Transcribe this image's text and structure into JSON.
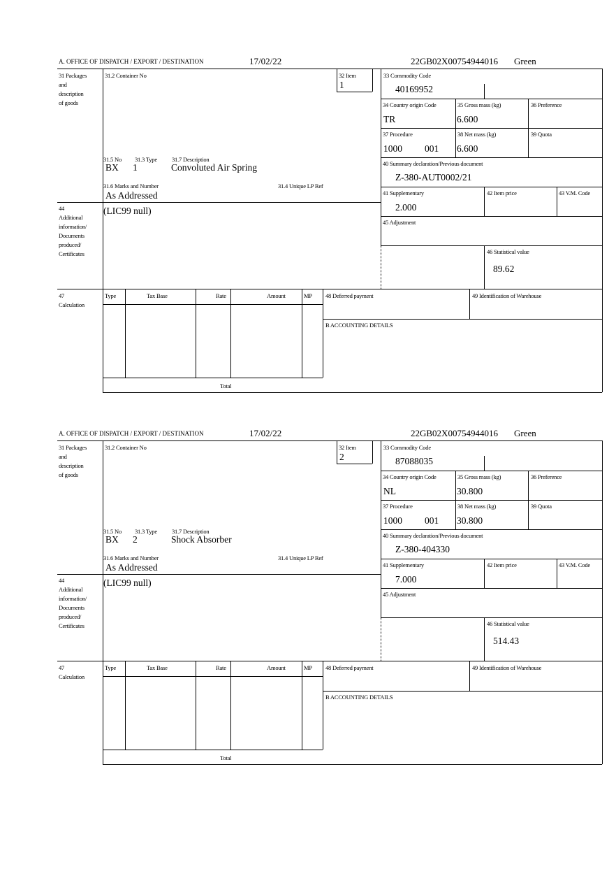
{
  "labels": {
    "office": "A. OFFICE OF DISPATCH / EXPORT / DESTINATION",
    "packages": [
      "31 Packages",
      "and",
      "description",
      "of goods"
    ],
    "container": "31.2 Container No",
    "item": "32 Item",
    "no": "31.5 No",
    "type": "31.3 Type",
    "description": "31.7 Description",
    "marks": "31.6 Marks and Number",
    "unique_ref": "31.4 Unique LP Ref",
    "additional": [
      "44",
      "Additional",
      "information/",
      "Documents",
      "produced/",
      "Certificates"
    ],
    "commodity": "33 Commodity Code",
    "origin": "34 Country origin Code",
    "gross": "35 Gross mass (kg)",
    "preference": "36 Preference",
    "procedure": "37 Procedure",
    "net": "38 Net mass (kg)",
    "quota": "39 Quota",
    "summary": "40 Summary declaration/Previous document",
    "supplementary": "41 Supplementary",
    "item_price": "42 Item price",
    "vm_code": "43 V.M. Code",
    "adjustment": "45 Adjustment",
    "statistical": "46 Statistical value",
    "calculation": [
      "47",
      "Calculation"
    ],
    "calc_columns": [
      "Type",
      "Tax Base",
      "Rate",
      "Amount",
      "MP"
    ],
    "total": "Total",
    "deferred": "48 Deferred payment",
    "warehouse": "49 Identification of Warehouse",
    "accounting": "B ACCOUNTING DETAILS"
  },
  "items": [
    {
      "date": "17/02/22",
      "reference": "22GB02X00754944016",
      "route": "Green",
      "item_no": "1",
      "package_kind": "BX",
      "package_count": "1",
      "description": "Convoluted Air Spring",
      "marks": "As Addressed",
      "additional_info": "(LIC99 null)",
      "commodity_code": "40169952",
      "origin": "TR",
      "gross_mass": "6.600",
      "procedure": "1000",
      "procedure_add": "001",
      "net_mass": "6.600",
      "previous_document": "Z-380-AUT0002/21",
      "supplementary": "2.000",
      "statistical_value": "89.62"
    },
    {
      "date": "17/02/22",
      "reference": "22GB02X00754944016",
      "route": "Green",
      "item_no": "2",
      "package_kind": "BX",
      "package_count": "2",
      "description": "Shock Absorber",
      "marks": "As Addressed",
      "additional_info": "(LIC99 null)",
      "commodity_code": "87088035",
      "origin": "NL",
      "gross_mass": "30.800",
      "procedure": "1000",
      "procedure_add": "001",
      "net_mass": "30.800",
      "previous_document": "Z-380-404330",
      "supplementary": "7.000",
      "statistical_value": "514.43"
    }
  ]
}
